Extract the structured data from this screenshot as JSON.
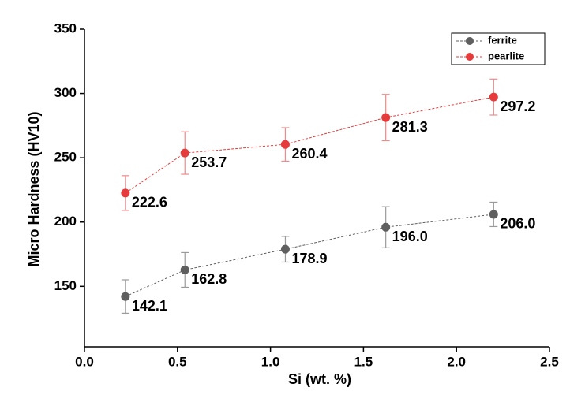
{
  "chart_data": {
    "type": "line",
    "xlabel": "Si (wt. %)",
    "ylabel": "Micro Hardness (HV10)",
    "x": [
      0.22,
      0.54,
      1.08,
      1.62,
      2.2
    ],
    "series": [
      {
        "name": "ferrite",
        "color": "#5f5f5f",
        "error_color": "#9a9a9a",
        "values": [
          142.1,
          162.8,
          178.9,
          196.0,
          206.0
        ],
        "value_labels": [
          "142.1",
          "162.8",
          "178.9",
          "196.0",
          "206.0"
        ],
        "errors": [
          13,
          13.5,
          10,
          16,
          9.5
        ]
      },
      {
        "name": "pearlite",
        "color": "#e63b3b",
        "error_color": "#ee8a8a",
        "values": [
          222.6,
          253.7,
          260.4,
          281.3,
          297.2
        ],
        "value_labels": [
          "222.6",
          "253.7",
          "260.4",
          "281.3",
          "297.2"
        ],
        "errors": [
          13.5,
          16.5,
          13,
          18,
          14
        ]
      }
    ],
    "xlim": [
      0,
      2.5
    ],
    "xticks": [
      {
        "value": 0,
        "label": "0.0"
      },
      0.5,
      {
        "value": 1,
        "label": "1.0"
      },
      1.5,
      {
        "value": 2,
        "label": "2.0"
      },
      2.5
    ],
    "ylim": [
      103,
      350
    ],
    "yticks": [
      150,
      200,
      250,
      300,
      350
    ],
    "legend": "upper right"
  }
}
